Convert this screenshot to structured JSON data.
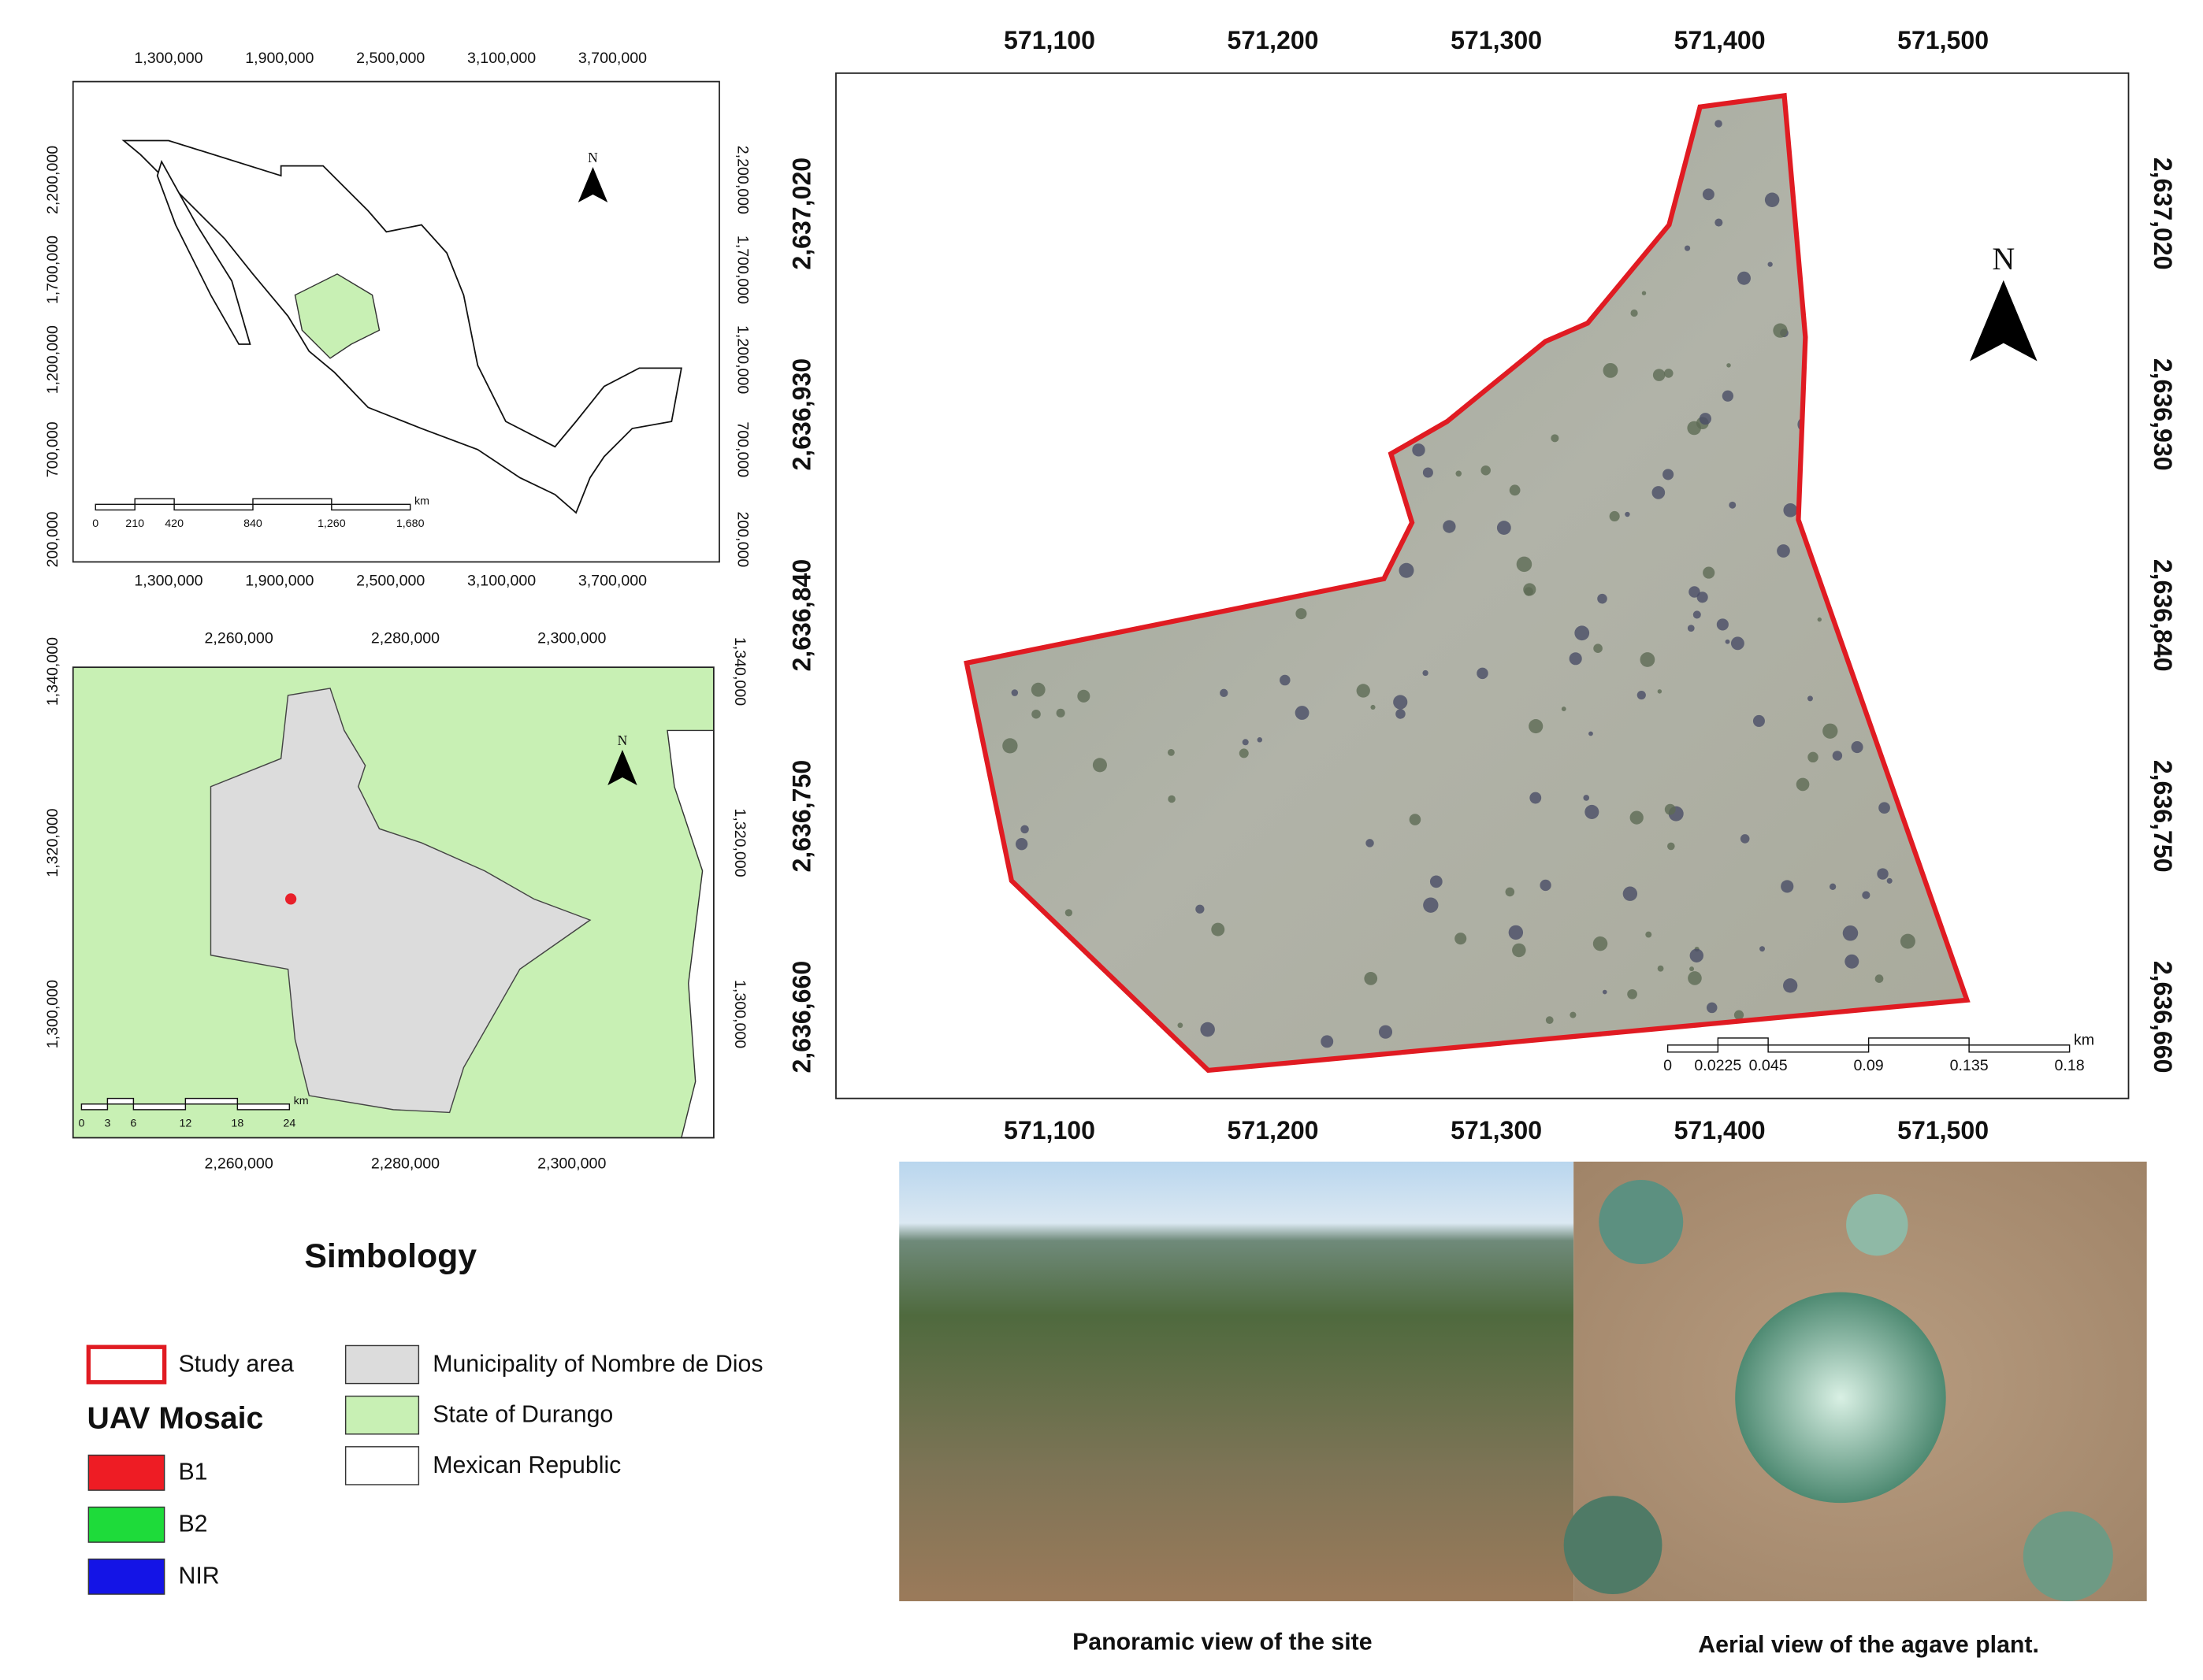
{
  "maps": [
    {
      "north": "N",
      "top_ticks": [
        "1,300,000",
        "1,900,000",
        "2,500,000",
        "3,100,000",
        "3,700,000"
      ],
      "bottom_ticks": [
        "1,300,000",
        "1,900,000",
        "2,500,000",
        "3,100,000",
        "3,700,000"
      ],
      "left_ticks": [
        "2,200,000",
        "1,700,000",
        "1,200,000",
        "700,000",
        "200,000"
      ],
      "right_ticks": [
        "2,200,000",
        "1,700,000",
        "1,200,000",
        "700,000",
        "200,000"
      ],
      "scale_labels": [
        "0",
        "210",
        "420",
        "840",
        "1,260",
        "1,680"
      ],
      "scale_unit": "km"
    },
    {
      "north": "N",
      "top_ticks": [
        "2,260,000",
        "2,280,000",
        "2,300,000"
      ],
      "bottom_ticks": [
        "2,260,000",
        "2,280,000",
        "2,300,000"
      ],
      "left_ticks": [
        "1,340,000",
        "1,320,000",
        "1,300,000"
      ],
      "right_ticks": [
        "1,340,000",
        "1,320,000",
        "1,300,000"
      ],
      "scale_labels": [
        "0",
        "3",
        "6",
        "12",
        "18",
        "24"
      ],
      "scale_unit": "km"
    },
    {
      "north": "N",
      "top_ticks": [
        "571,100",
        "571,200",
        "571,300",
        "571,400",
        "571,500"
      ],
      "bottom_ticks": [
        "571,100",
        "571,200",
        "571,300",
        "571,400",
        "571,500"
      ],
      "left_ticks": [
        "2,637,020",
        "2,636,930",
        "2,636,840",
        "2,636,750",
        "2,636,660"
      ],
      "right_ticks": [
        "2,637,020",
        "2,636,930",
        "2,636,840",
        "2,636,750",
        "2,636,660"
      ],
      "scale_labels": [
        "0",
        "0.0225",
        "0.045",
        "0.09",
        "0.135",
        "0.18"
      ],
      "scale_unit": "km"
    }
  ],
  "legend": {
    "title": "Simbology",
    "study_area": "Study area",
    "mosaic_title": "UAV Mosaic",
    "bands": [
      "B1",
      "B2",
      "NIR"
    ],
    "areas": [
      "Municipality of Nombre de Dios",
      "State of Durango",
      "Mexican Republic"
    ]
  },
  "photos": [
    {
      "caption": "Panoramic view of the site"
    },
    {
      "caption": "Aerial view of the agave plant."
    }
  ]
}
